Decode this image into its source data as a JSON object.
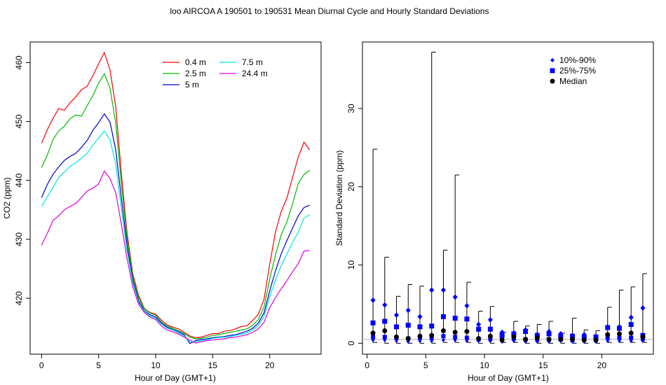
{
  "figure": {
    "title": "loo   AIRCOA A   190501 to 190531   Mean Diurnal Cycle and Hourly Standard Deviations"
  },
  "chart_data": [
    {
      "type": "line",
      "xlabel": "Hour of Day (GMT+1)",
      "ylabel": "CO2 (ppm)",
      "xlim": [
        -1,
        24.5
      ],
      "ylim": [
        410.5,
        463.5
      ],
      "xticks": [
        0,
        5,
        10,
        15,
        20
      ],
      "yticks": [
        420,
        430,
        440,
        450,
        460
      ],
      "legend": "top-center",
      "x": [
        0,
        0.5,
        1,
        1.5,
        2,
        2.5,
        3,
        3.5,
        4,
        4.5,
        5,
        5.5,
        6,
        6.5,
        7,
        7.5,
        8,
        8.5,
        9,
        9.5,
        10,
        10.5,
        11,
        11.5,
        12,
        12.5,
        13,
        13.5,
        14,
        14.5,
        15,
        15.5,
        16,
        16.5,
        17,
        17.5,
        18,
        18.5,
        19,
        19.5,
        20,
        20.5,
        21,
        21.5,
        22,
        22.5,
        23,
        23.5
      ],
      "series": [
        {
          "name": "0.4 m",
          "color": "#ff0000",
          "values": [
            446.3,
            448.6,
            450.5,
            452.2,
            451.9,
            453.2,
            454.2,
            455.4,
            456.0,
            457.8,
            459.8,
            461.7,
            458.8,
            452.5,
            441.0,
            431.0,
            424.1,
            420.5,
            418.3,
            417.6,
            417.3,
            416.3,
            415.5,
            415.1,
            414.8,
            414.2,
            413.6,
            413.3,
            413.4,
            413.7,
            414.0,
            414.0,
            414.4,
            414.5,
            414.8,
            415.2,
            415.3,
            416.2,
            417.3,
            419.8,
            425.8,
            431.2,
            434.7,
            437.0,
            440.5,
            444.0,
            446.5,
            445.2
          ]
        },
        {
          "name": "2.5 m",
          "color": "#00bb00",
          "values": [
            442.2,
            444.3,
            446.9,
            448.4,
            449.2,
            450.5,
            451.1,
            450.9,
            452.7,
            454.4,
            456.5,
            458.1,
            455.7,
            449.7,
            439.4,
            430.1,
            423.6,
            420.1,
            418.2,
            417.5,
            417.1,
            416.0,
            415.3,
            414.9,
            414.5,
            414.0,
            413.4,
            413.1,
            413.2,
            413.4,
            413.7,
            413.8,
            414.0,
            414.2,
            414.4,
            414.6,
            414.8,
            415.4,
            416.4,
            418.5,
            423.3,
            427.3,
            430.7,
            433.0,
            436.0,
            439.5,
            441.0,
            441.7
          ]
        },
        {
          "name": "5 m",
          "color": "#0000cc",
          "values": [
            437.1,
            439.3,
            441.0,
            442.3,
            443.4,
            444.1,
            444.6,
            445.6,
            446.8,
            448.5,
            449.8,
            451.3,
            449.9,
            445.2,
            436.9,
            428.9,
            423.0,
            419.6,
            417.9,
            417.2,
            416.8,
            415.8,
            415.1,
            414.7,
            414.3,
            413.8,
            412.3,
            412.8,
            413.0,
            413.1,
            413.3,
            413.4,
            413.5,
            413.7,
            413.8,
            414.1,
            414.4,
            414.9,
            415.8,
            417.5,
            421.3,
            424.6,
            427.5,
            429.8,
            431.9,
            434.0,
            435.4,
            435.8
          ]
        },
        {
          "name": "7.5 m",
          "color": "#00e5e5",
          "values": [
            435.6,
            437.2,
            438.8,
            440.5,
            441.4,
            442.4,
            443.0,
            443.8,
            444.6,
            446.0,
            447.2,
            448.4,
            446.9,
            442.8,
            435.1,
            428.0,
            422.6,
            419.3,
            417.8,
            417.0,
            416.6,
            415.6,
            414.9,
            414.6,
            414.1,
            413.6,
            412.6,
            412.6,
            412.8,
            412.9,
            413.2,
            413.3,
            413.4,
            413.5,
            413.7,
            413.9,
            414.1,
            414.6,
            415.4,
            416.9,
            420.3,
            423.1,
            425.5,
            427.5,
            429.5,
            431.2,
            433.6,
            434.2
          ]
        },
        {
          "name": "24.4 m",
          "color": "#dd00dd",
          "values": [
            429.0,
            431.0,
            433.2,
            434.0,
            435.0,
            435.6,
            436.1,
            437.1,
            438.2,
            438.7,
            439.4,
            441.6,
            440.3,
            437.9,
            432.5,
            426.7,
            421.9,
            419.0,
            417.6,
            416.8,
            416.4,
            415.3,
            414.6,
            414.3,
            413.9,
            413.4,
            412.9,
            412.4,
            412.6,
            412.8,
            412.9,
            413.0,
            413.1,
            413.3,
            413.4,
            413.6,
            413.8,
            414.2,
            414.8,
            415.9,
            418.4,
            420.1,
            421.6,
            423.0,
            424.5,
            425.9,
            428.0,
            428.1
          ]
        }
      ]
    },
    {
      "type": "scatter",
      "xlabel": "Hour of Day (GMT+1)",
      "ylabel": "Standard Deviation (ppm)",
      "xlim": [
        -0.4,
        24.4
      ],
      "ylim": [
        -1.4,
        38.5
      ],
      "xticks": [
        0,
        5,
        10,
        15,
        20
      ],
      "yticks": [
        0,
        10,
        20,
        30
      ],
      "reference_line": 0.5,
      "legend": "top-right",
      "legend_entries": [
        {
          "name": "10%-90%",
          "marker": "diamond",
          "color": "#0000ff"
        },
        {
          "name": "25%-75%",
          "marker": "square",
          "color": "#0000ff"
        },
        {
          "name": "Median",
          "marker": "circle",
          "color": "#000000"
        }
      ],
      "x": [
        0.5,
        1.5,
        2.5,
        3.5,
        4.5,
        5.5,
        6.5,
        7.5,
        8.5,
        9.5,
        10.5,
        11.5,
        12.5,
        13.5,
        14.5,
        15.5,
        16.5,
        17.5,
        18.5,
        19.5,
        20.5,
        21.5,
        22.5,
        23.5
      ],
      "p10": [
        0.4,
        0.4,
        0.3,
        0.2,
        0.3,
        0.3,
        0.4,
        0.4,
        0.3,
        0.3,
        0.3,
        0.2,
        0.3,
        0.2,
        0.2,
        0.2,
        0.3,
        0.2,
        0.2,
        0.2,
        0.3,
        0.3,
        0.3,
        0.3
      ],
      "p25": [
        0.8,
        0.8,
        0.7,
        0.6,
        0.7,
        0.7,
        0.9,
        0.8,
        0.7,
        0.5,
        0.6,
        0.5,
        0.6,
        0.5,
        0.5,
        0.5,
        0.5,
        0.4,
        0.5,
        0.4,
        0.7,
        0.7,
        0.7,
        0.6
      ],
      "median": [
        1.3,
        1.6,
        0.8,
        0.6,
        0.9,
        1.0,
        1.6,
        1.4,
        1.5,
        0.6,
        0.9,
        0.4,
        0.8,
        0.5,
        0.7,
        0.5,
        0.5,
        0.5,
        0.4,
        0.4,
        1.1,
        1.2,
        1.3,
        0.8
      ],
      "p75": [
        2.6,
        2.8,
        2.1,
        2.3,
        2.1,
        2.2,
        3.4,
        3.2,
        3.1,
        1.8,
        1.8,
        1.0,
        1.2,
        1.5,
        1.0,
        1.2,
        0.9,
        0.9,
        0.8,
        0.8,
        2.0,
        1.9,
        2.4,
        1.0
      ],
      "p90": [
        5.5,
        4.9,
        3.6,
        4.2,
        3.4,
        6.8,
        6.8,
        5.9,
        4.8,
        2.4,
        3.0,
        1.4,
        1.3,
        1.7,
        1.1,
        1.5,
        1.2,
        1.0,
        1.1,
        0.9,
        2.1,
        2.1,
        3.3,
        4.5
      ],
      "max": [
        24.8,
        11.0,
        6.0,
        7.5,
        7.3,
        37.2,
        11.9,
        21.5,
        7.8,
        4.1,
        4.7,
        1.4,
        2.8,
        2.2,
        2.4,
        2.8,
        1.3,
        3.2,
        1.7,
        1.6,
        4.6,
        6.8,
        7.2,
        8.9
      ],
      "min": [
        0.1,
        0.0,
        0.0,
        0.0,
        0.0,
        0.0,
        0.1,
        0.1,
        0.1,
        0.0,
        0.0,
        0.1,
        0.1,
        0.0,
        0.0,
        0.0,
        0.0,
        0.0,
        0.0,
        0.0,
        0.1,
        0.1,
        0.1,
        0.1
      ]
    }
  ]
}
